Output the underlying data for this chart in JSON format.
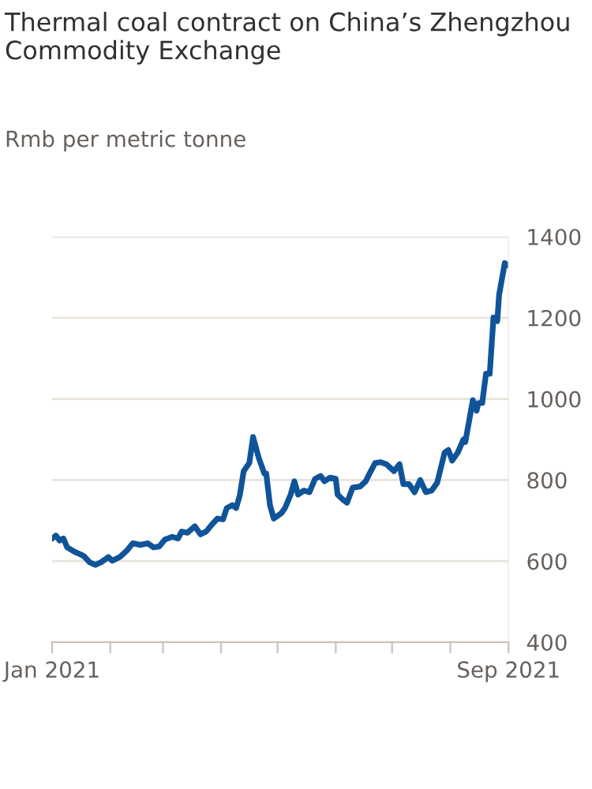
{
  "chart_data": {
    "type": "line",
    "title": "Thermal coal contract on China’s Zhengzhou Commodity Exchange",
    "subtitle": "Rmb per metric tonne",
    "x": [
      "2021-01-01",
      "2021-01-03",
      "2021-01-05",
      "2021-01-07",
      "2021-01-09",
      "2021-01-13",
      "2021-01-16",
      "2021-01-18",
      "2021-01-21",
      "2021-01-24",
      "2021-01-27",
      "2021-01-31",
      "2021-02-02",
      "2021-02-06",
      "2021-02-10",
      "2021-02-13",
      "2021-02-17",
      "2021-02-21",
      "2021-02-24",
      "2021-02-27",
      "2021-03-02",
      "2021-03-06",
      "2021-03-09",
      "2021-03-11",
      "2021-03-14",
      "2021-03-18",
      "2021-03-21",
      "2021-03-24",
      "2021-03-27",
      "2021-03-30",
      "2021-04-02",
      "2021-04-04",
      "2021-04-07",
      "2021-04-09",
      "2021-04-11",
      "2021-04-13",
      "2021-04-16",
      "2021-04-18",
      "2021-04-21",
      "2021-04-24",
      "2021-04-25",
      "2021-04-27",
      "2021-04-29",
      "2021-05-03",
      "2021-05-05",
      "2021-05-08",
      "2021-05-10",
      "2021-05-12",
      "2021-05-15",
      "2021-05-18",
      "2021-05-21",
      "2021-05-24",
      "2021-05-26",
      "2021-05-29",
      "2021-06-01",
      "2021-06-02",
      "2021-06-05",
      "2021-06-07",
      "2021-06-10",
      "2021-06-14",
      "2021-06-17",
      "2021-06-19",
      "2021-06-22",
      "2021-06-25",
      "2021-06-28",
      "2021-07-02",
      "2021-07-05",
      "2021-07-07",
      "2021-07-10",
      "2021-07-13",
      "2021-07-16",
      "2021-07-19",
      "2021-07-22",
      "2021-07-25",
      "2021-07-29",
      "2021-07-31",
      "2021-08-02",
      "2021-08-05",
      "2021-08-08",
      "2021-08-09",
      "2021-08-12",
      "2021-08-13",
      "2021-08-15",
      "2021-08-16",
      "2021-08-18",
      "2021-08-20",
      "2021-08-22",
      "2021-08-24",
      "2021-08-26",
      "2021-08-27",
      "2021-08-30",
      "2021-09-01"
    ],
    "series": [
      {
        "color": "#0f5499",
        "values": [
          656,
          663,
          651,
          656,
          634,
          623,
          617,
          612,
          597,
          591,
          597,
          610,
          601,
          610,
          627,
          644,
          640,
          644,
          634,
          636,
          653,
          660,
          656,
          673,
          670,
          686,
          666,
          673,
          690,
          705,
          703,
          731,
          738,
          731,
          764,
          822,
          842,
          906,
          855,
          816,
          816,
          738,
          705,
          718,
          731,
          764,
          797,
          764,
          774,
          770,
          803,
          810,
          797,
          806,
          803,
          764,
          751,
          744,
          781,
          784,
          797,
          816,
          842,
          844,
          839,
          822,
          839,
          790,
          790,
          770,
          800,
          770,
          774,
          793,
          868,
          874,
          848,
          868,
          900,
          894,
          971,
          997,
          971,
          990,
          990,
          1062,
          1062,
          1201,
          1192,
          1257,
          1335,
          1329
        ]
      }
    ],
    "xlim": [
      "2021-01-01",
      "2021-09-01"
    ],
    "xticks": [
      {
        "value": "2021-01-01",
        "label": "Jan 2021"
      },
      {
        "value": "2021-02-01",
        "label": null
      },
      {
        "value": "2021-03-01",
        "label": null
      },
      {
        "value": "2021-04-01",
        "label": null
      },
      {
        "value": "2021-05-01",
        "label": null
      },
      {
        "value": "2021-06-01",
        "label": null
      },
      {
        "value": "2021-07-01",
        "label": null
      },
      {
        "value": "2021-08-01",
        "label": null
      },
      {
        "value": "2021-09-01",
        "label": "Sep 2021"
      }
    ],
    "ylim": [
      400,
      1400
    ],
    "yticks": [
      400,
      600,
      800,
      1000,
      1200,
      1400
    ],
    "grid": "y",
    "line_style": "solid",
    "marker": "none"
  }
}
